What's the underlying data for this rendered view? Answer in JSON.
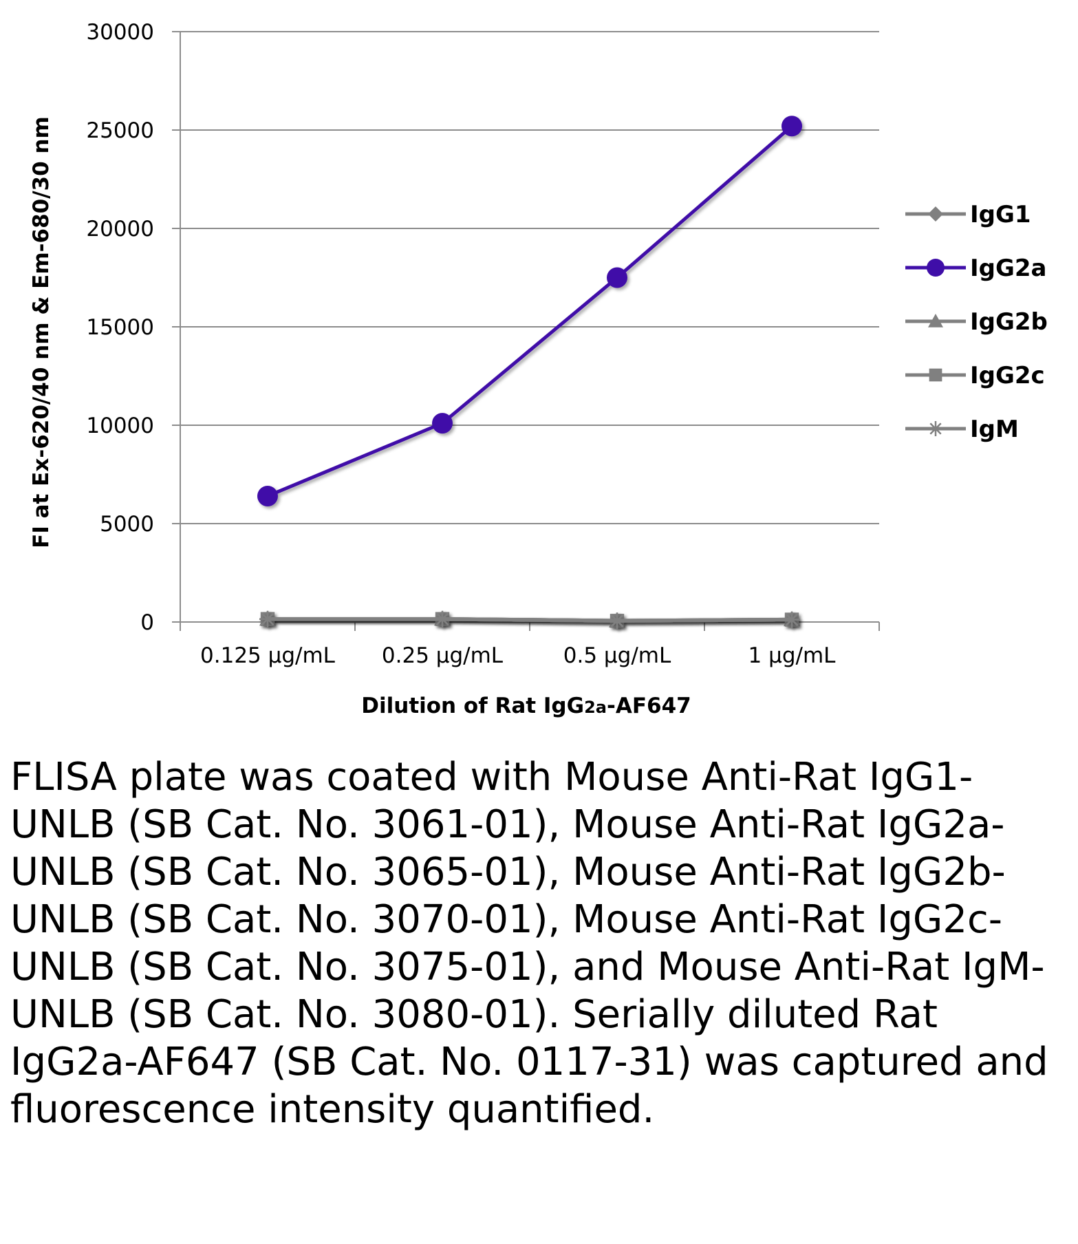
{
  "chart_data": {
    "type": "line",
    "categories": [
      "0.125 µg/mL",
      "0.25 µg/mL",
      "0.5 µg/mL",
      "1 µg/mL"
    ],
    "series": [
      {
        "name": "IgG1",
        "values": [
          150,
          150,
          60,
          120
        ],
        "color": "#808080",
        "marker": "diamond"
      },
      {
        "name": "IgG2a",
        "values": [
          6400,
          10100,
          17500,
          25200
        ],
        "color": "#3f0ea8",
        "marker": "circle"
      },
      {
        "name": "IgG2b",
        "values": [
          150,
          150,
          60,
          120
        ],
        "color": "#808080",
        "marker": "triangle"
      },
      {
        "name": "IgG2c",
        "values": [
          150,
          150,
          60,
          120
        ],
        "color": "#808080",
        "marker": "square"
      },
      {
        "name": "IgM",
        "values": [
          150,
          150,
          60,
          120
        ],
        "color": "#808080",
        "marker": "star"
      }
    ],
    "yticks": [
      "0",
      "5000",
      "10000",
      "15000",
      "20000",
      "25000",
      "30000"
    ],
    "ylim": [
      0,
      30000
    ],
    "ylabel": "FI at Ex-620/40 nm & Em-680/30 nm",
    "xlabel": "Dilution of Rat IgG2a-AF647",
    "grid": true,
    "legend_position": "right"
  },
  "caption": "FLISA plate was coated with Mouse Anti-Rat IgG1-UNLB (SB Cat. No. 3061-01), Mouse Anti-Rat IgG2a-UNLB (SB Cat. No. 3065-01), Mouse Anti-Rat IgG2b-UNLB (SB Cat. No. 3070-01), Mouse Anti-Rat IgG2c-UNLB (SB Cat. No. 3075-01), and Mouse Anti-Rat IgM-UNLB (SB Cat. No. 3080-01).  Serially diluted Rat IgG2a-AF647 (SB Cat. No. 0117-31) was captured and fluorescence intensity quantified."
}
